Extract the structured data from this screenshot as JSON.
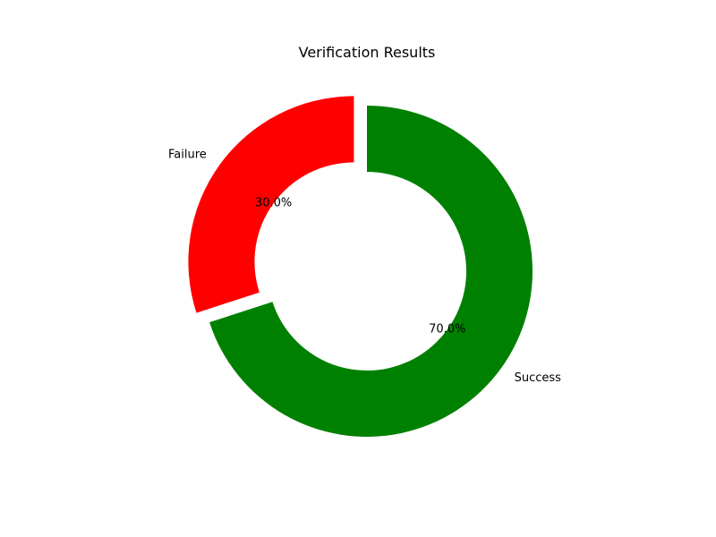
{
  "chart_data": {
    "type": "pie",
    "title": "Verification Results",
    "donut": true,
    "start_angle_deg": 90,
    "direction": "clockwise",
    "slices": [
      {
        "label": "Success",
        "value": 70,
        "percent_label": "70.0%",
        "color": "#008000",
        "exploded": false
      },
      {
        "label": "Failure",
        "value": 30,
        "percent_label": "30.0%",
        "color": "#ff0000",
        "exploded": true
      }
    ]
  }
}
